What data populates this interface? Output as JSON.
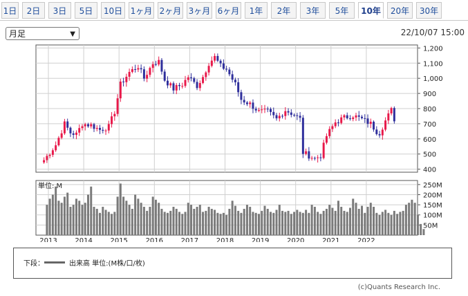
{
  "tabs": [
    {
      "label": "1日",
      "active": false
    },
    {
      "label": "2日",
      "active": false
    },
    {
      "label": "3日",
      "active": false
    },
    {
      "label": "5日",
      "active": false
    },
    {
      "label": "10日",
      "active": false
    },
    {
      "label": "1ヶ月",
      "active": false
    },
    {
      "label": "2ヶ月",
      "active": false
    },
    {
      "label": "3ヶ月",
      "active": false
    },
    {
      "label": "6ヶ月",
      "active": false
    },
    {
      "label": "1年",
      "active": false
    },
    {
      "label": "2年",
      "active": false
    },
    {
      "label": "3年",
      "active": false
    },
    {
      "label": "5年",
      "active": false
    },
    {
      "label": "10年",
      "active": true
    },
    {
      "label": "20年",
      "active": false
    },
    {
      "label": "30年",
      "active": false
    }
  ],
  "period_select": {
    "value": "月足"
  },
  "timestamp": "22/10/07 15:00",
  "chart_data": [
    {
      "type": "candlestick",
      "y_ticks": [
        "1,200",
        "1,100",
        "1,000",
        "900",
        "800",
        "700",
        "600",
        "500",
        "400"
      ],
      "ylim": [
        380,
        1220
      ],
      "x_ticks": [
        "2013",
        "2014",
        "2015",
        "2016",
        "2017",
        "2018",
        "2019",
        "2020",
        "2021",
        "2022"
      ],
      "colors": {
        "up": "#e8194a",
        "down": "#2f2f9c"
      },
      "anchors": [
        [
          "2012-11",
          460
        ],
        [
          "2013-03",
          560
        ],
        [
          "2013-06",
          700
        ],
        [
          "2013-08",
          640
        ],
        [
          "2013-10",
          630
        ],
        [
          "2013-12",
          700
        ],
        [
          "2014-03",
          690
        ],
        [
          "2014-06",
          660
        ],
        [
          "2014-09",
          680
        ],
        [
          "2014-11",
          780
        ],
        [
          "2015-01",
          960
        ],
        [
          "2015-04",
          1040
        ],
        [
          "2015-07",
          1080
        ],
        [
          "2015-09",
          1000
        ],
        [
          "2015-12",
          1100
        ],
        [
          "2016-02",
          1110
        ],
        [
          "2016-04",
          990
        ],
        [
          "2016-07",
          930
        ],
        [
          "2016-10",
          960
        ],
        [
          "2016-12",
          1010
        ],
        [
          "2017-03",
          950
        ],
        [
          "2017-05",
          1010
        ],
        [
          "2017-07",
          1100
        ],
        [
          "2017-09",
          1140
        ],
        [
          "2017-11",
          1080
        ],
        [
          "2018-01",
          1060
        ],
        [
          "2018-04",
          960
        ],
        [
          "2018-06",
          860
        ],
        [
          "2018-09",
          830
        ],
        [
          "2018-12",
          780
        ],
        [
          "2019-03",
          780
        ],
        [
          "2019-06",
          730
        ],
        [
          "2019-09",
          790
        ],
        [
          "2019-12",
          760
        ],
        [
          "2020-02",
          730
        ],
        [
          "2020-03",
          510
        ],
        [
          "2020-04",
          500
        ],
        [
          "2020-07",
          470
        ],
        [
          "2020-09",
          490
        ],
        [
          "2020-11",
          620
        ],
        [
          "2021-02",
          710
        ],
        [
          "2021-05",
          740
        ],
        [
          "2021-08",
          755
        ],
        [
          "2021-11",
          730
        ],
        [
          "2022-02",
          700
        ],
        [
          "2022-04",
          650
        ],
        [
          "2022-05",
          640
        ],
        [
          "2022-07",
          720
        ],
        [
          "2022-09",
          790
        ],
        [
          "2022-10",
          730
        ]
      ]
    },
    {
      "type": "bar",
      "unit_label": "単位: M",
      "y_ticks": [
        "250M",
        "200M",
        "150M",
        "100M",
        "50M"
      ],
      "ylim": [
        0,
        270
      ],
      "values": [
        150,
        180,
        200,
        240,
        170,
        160,
        190,
        210,
        140,
        150,
        180,
        170,
        150,
        160,
        200,
        240,
        140,
        130,
        110,
        140,
        125,
        115,
        105,
        115,
        190,
        255,
        190,
        170,
        150,
        130,
        200,
        180,
        160,
        140,
        120,
        140,
        190,
        175,
        160,
        130,
        115,
        110,
        120,
        140,
        130,
        115,
        105,
        115,
        160,
        150,
        130,
        140,
        150,
        115,
        120,
        140,
        130,
        125,
        110,
        105,
        110,
        100,
        130,
        170,
        145,
        120,
        110,
        130,
        150,
        140,
        115,
        110,
        105,
        120,
        145,
        130,
        115,
        110,
        125,
        150,
        120,
        115,
        120,
        105,
        115,
        125,
        115,
        110,
        125,
        110,
        150,
        140,
        115,
        105,
        120,
        130,
        150,
        135,
        120,
        170,
        140,
        120,
        115,
        135,
        180,
        160,
        130,
        145,
        110,
        140,
        160,
        140,
        110,
        100,
        115,
        125,
        110,
        100,
        120,
        105,
        115,
        120,
        150,
        160,
        175,
        160,
        100,
        55,
        30
      ]
    }
  ],
  "legend": {
    "label": "下段：",
    "series": "出来高 単位:(M株/口/枚)"
  },
  "credit": "(c)Quants Research Inc."
}
